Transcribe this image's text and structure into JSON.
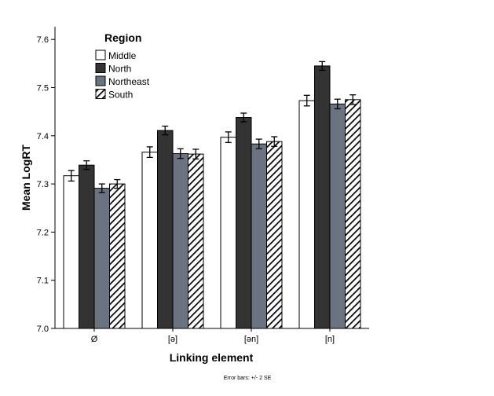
{
  "chart_data": {
    "type": "bar",
    "title": "",
    "xlabel": "Linking element",
    "ylabel": "Mean LogRT",
    "ylim": [
      7.0,
      7.65
    ],
    "yticks": [
      "7.0",
      "7.1",
      "7.2",
      "7.3",
      "7.4",
      "7.5",
      "7.6"
    ],
    "grid": false,
    "legend_title": "Region",
    "legend_position": "top-left",
    "categories": [
      "Ø",
      "[ə]",
      "[ən]",
      "[n]"
    ],
    "series": [
      {
        "name": "Middle",
        "values": [
          7.317,
          7.366,
          7.397,
          7.473
        ],
        "error": [
          0.011,
          0.011,
          0.011,
          0.011
        ],
        "color": "#ffffff",
        "pattern": "solid"
      },
      {
        "name": "North",
        "values": [
          7.339,
          7.411,
          7.438,
          7.545
        ],
        "error": [
          0.009,
          0.009,
          0.009,
          0.009
        ],
        "color": "#333333",
        "pattern": "solid"
      },
      {
        "name": "Northeast",
        "values": [
          7.291,
          7.363,
          7.383,
          7.466
        ],
        "error": [
          0.009,
          0.01,
          0.01,
          0.01
        ],
        "color": "#6b7380",
        "pattern": "solid"
      },
      {
        "name": "South",
        "values": [
          7.3,
          7.362,
          7.388,
          7.475
        ],
        "error": [
          0.009,
          0.01,
          0.01,
          0.01
        ],
        "color": "#ffffff",
        "pattern": "hatch"
      }
    ],
    "footnote": "Error bars: +/- 2 SE"
  }
}
